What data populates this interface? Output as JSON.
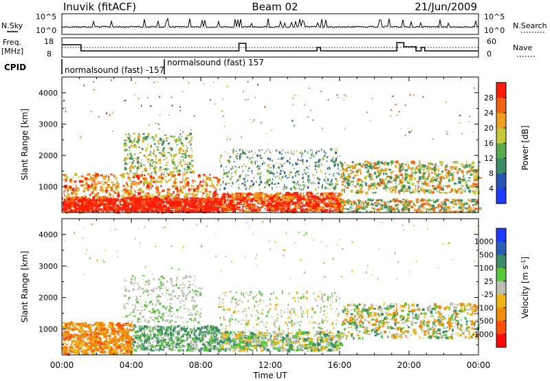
{
  "header": {
    "station": "Inuvik (fitACF)",
    "beam": "Beam 02",
    "date": "21/Jun/2009"
  },
  "nsky_panel": {
    "left_label": "N.Sky",
    "left_ticks": [
      "10^5",
      "10^0"
    ],
    "right_label": "N.Search",
    "right_ticks": [
      "10^5",
      "10^0"
    ]
  },
  "freq_panel": {
    "left_label_line1": "Freq.",
    "left_label_line2": "[MHz]",
    "left_ticks": [
      "18",
      "8"
    ],
    "right_label": "Nave",
    "right_ticks": [
      "60",
      "0"
    ]
  },
  "cpid": {
    "label": "CPID",
    "entries": [
      "normalsound (fast) -157",
      "normalsound (fast) 157"
    ]
  },
  "time_axis": {
    "label": "Time UT",
    "ticks": [
      "00:00",
      "04:00",
      "08:00",
      "12:00",
      "16:00",
      "20:00",
      "00:00"
    ]
  },
  "chart_data": [
    {
      "type": "heatmap",
      "title": "Power",
      "xlabel": "Time UT",
      "ylabel": "Slant Range [km]",
      "x_ticks": [
        "00:00",
        "04:00",
        "08:00",
        "12:00",
        "16:00",
        "20:00",
        "00:00"
      ],
      "y_ticks": [
        1000,
        2000,
        3000,
        4000
      ],
      "ylim": [
        180,
        4500
      ],
      "colorbar": {
        "label": "Power [dB]",
        "ticks": [
          4,
          8,
          12,
          16,
          20,
          24,
          28
        ],
        "colors": [
          "#1e3cff",
          "#2a54b4",
          "#3c8c64",
          "#5aaa50",
          "#c8c83c",
          "#f0a01e",
          "#f06414",
          "#ff1e0a"
        ]
      },
      "regions": [
        {
          "t": [
            0.0,
            9.2
          ],
          "r": [
            200,
            700
          ],
          "level": "high"
        },
        {
          "t": [
            9.2,
            15.0
          ],
          "r": [
            200,
            800
          ],
          "level": "high"
        },
        {
          "t": [
            0.0,
            24.0
          ],
          "r": [
            700,
            1500
          ],
          "level": "mid"
        },
        {
          "t": [
            3.5,
            7.5
          ],
          "r": [
            1500,
            2700
          ],
          "level": "mid"
        },
        {
          "t": [
            9.0,
            24.0
          ],
          "r": [
            1200,
            2300
          ],
          "level": "low"
        }
      ]
    },
    {
      "type": "heatmap",
      "title": "Velocity",
      "xlabel": "Time UT",
      "ylabel": "Slant Range [km]",
      "x_ticks": [
        "00:00",
        "04:00",
        "08:00",
        "12:00",
        "16:00",
        "20:00",
        "00:00"
      ],
      "y_ticks": [
        1000,
        2000,
        3000,
        4000
      ],
      "ylim": [
        180,
        4500
      ],
      "colorbar": {
        "label_main": "Velocity [m s",
        "label_sup": "-1",
        "label_end": "]",
        "ticks": [
          1000,
          500,
          100,
          25,
          -25,
          -100,
          -500,
          -1000
        ],
        "colors": [
          "#1e3cff",
          "#2a60b4",
          "#3c8c64",
          "#5ac83c",
          "#bebeb4",
          "#f0b414",
          "#f08c0a",
          "#ff500a",
          "#ff0a0a"
        ]
      }
    }
  ]
}
